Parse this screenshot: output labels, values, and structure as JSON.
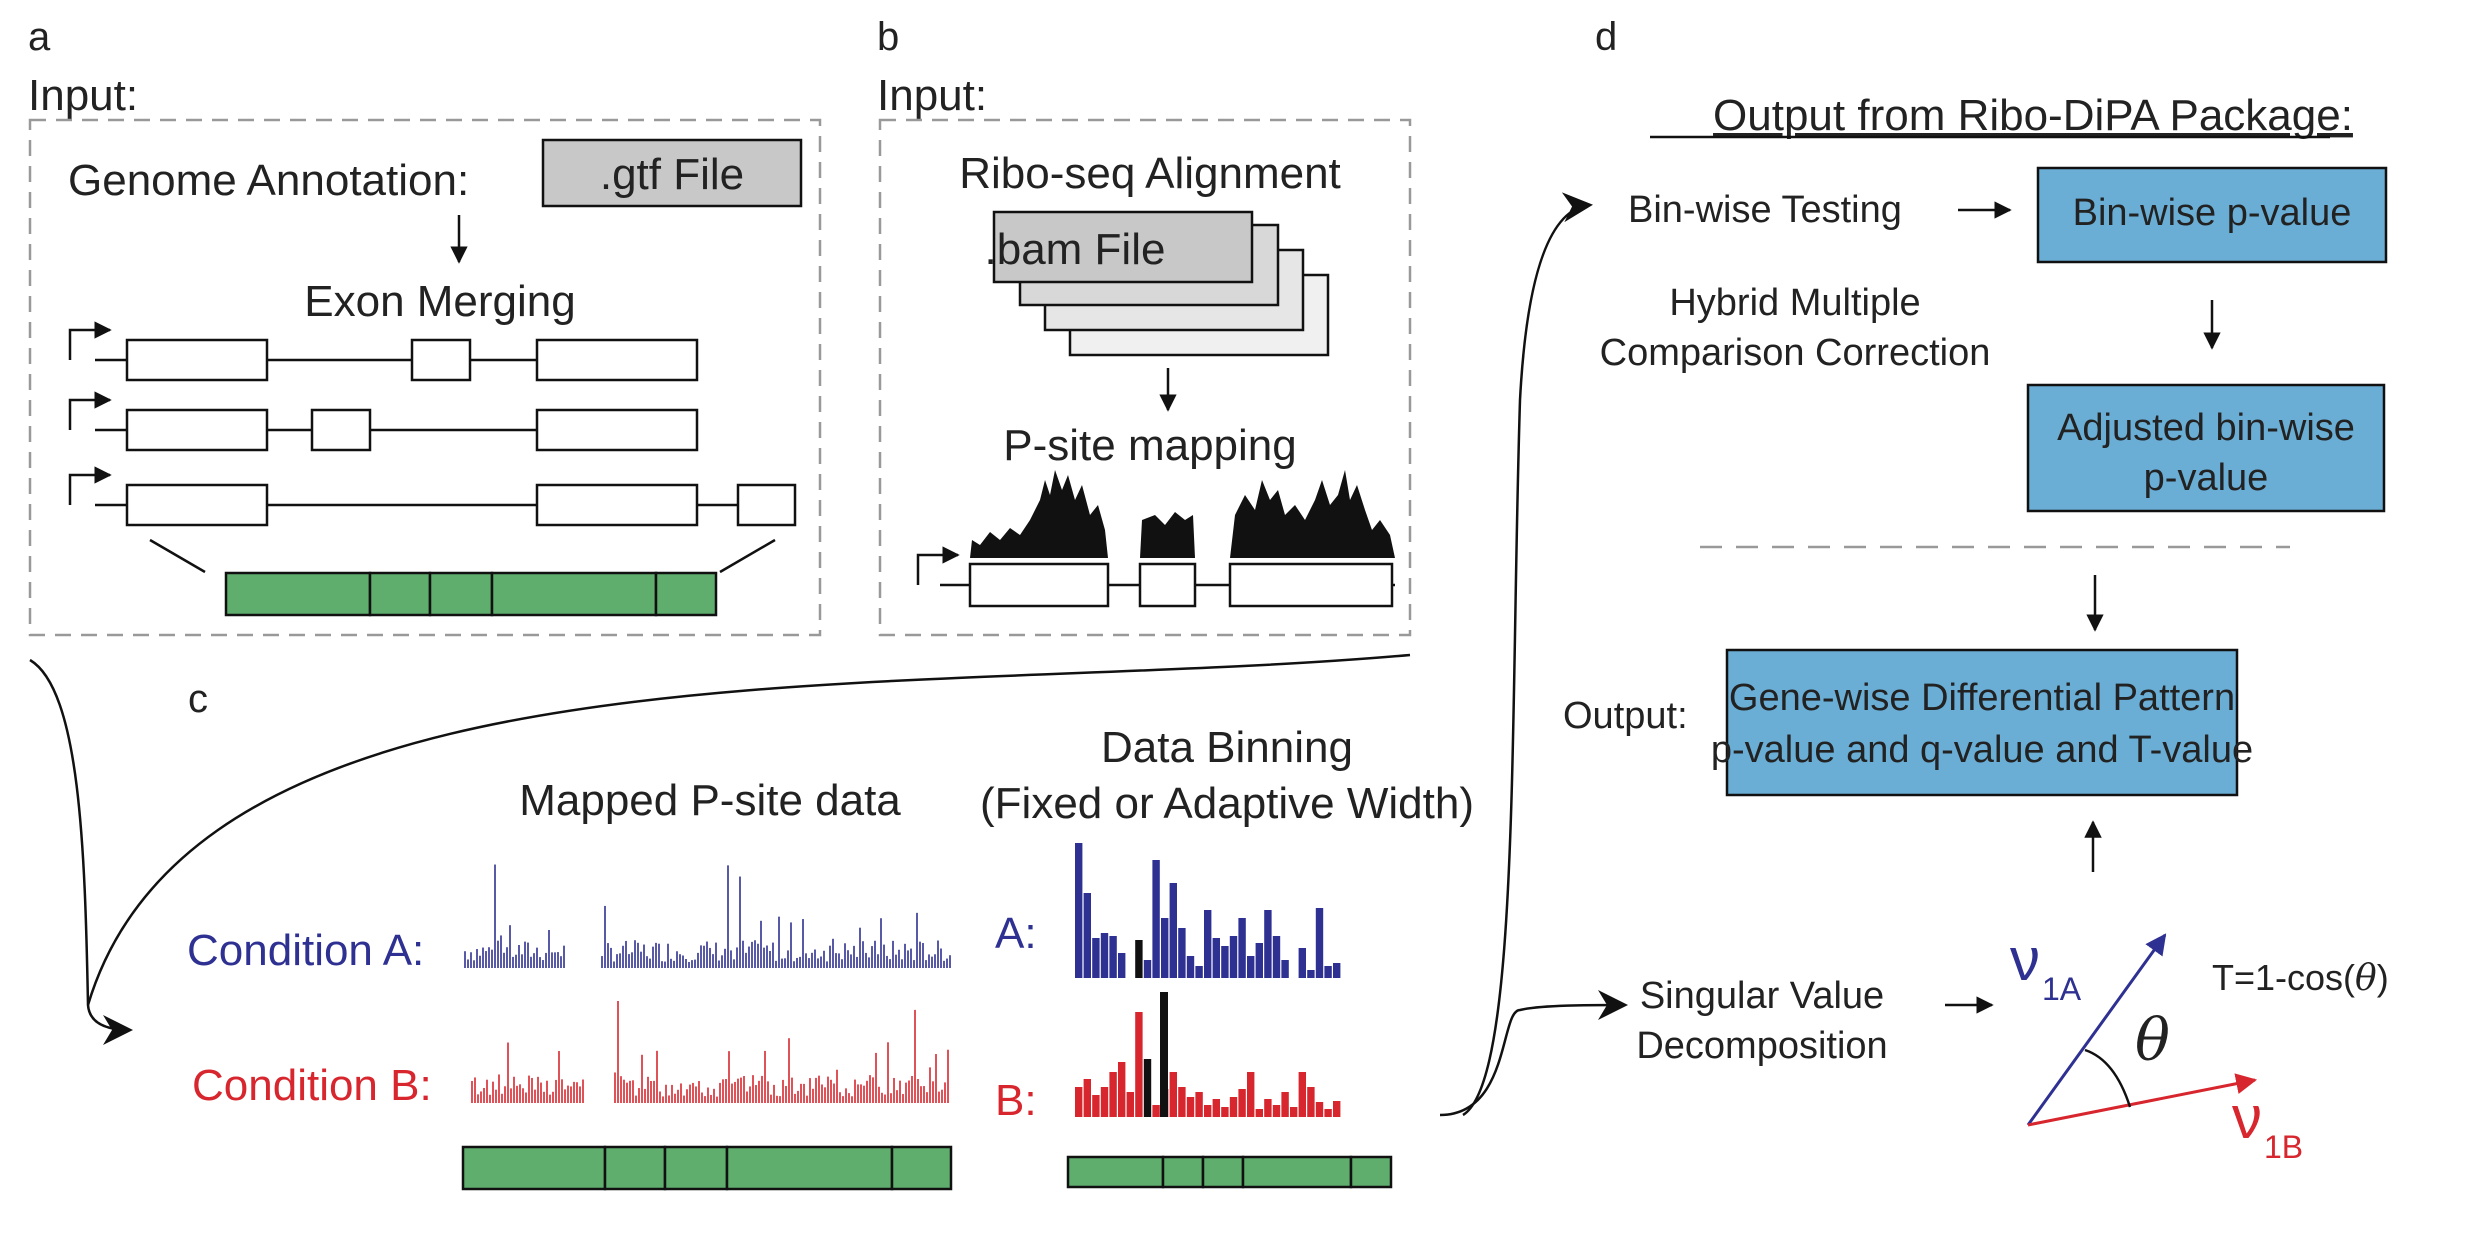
{
  "panels": {
    "a": {
      "letter": "a",
      "input_label": "Input:",
      "annotation_label": "Genome Annotation:",
      "file_label": ".gtf File",
      "step_label": "Exon Merging"
    },
    "b": {
      "letter": "b",
      "input_label": "Input:",
      "alignment_label": "Ribo-seq Alignment",
      "file_label": ".bam File",
      "step_label": "P-site mapping"
    },
    "c": {
      "letter": "c",
      "mapped_title": "Mapped P-site data",
      "binning_title_1": "Data Binning",
      "binning_title_2": "(Fixed or Adaptive Width)",
      "condition_a": "Condition A:",
      "condition_b": "Condition B:",
      "short_a": "A:",
      "short_b": "B:"
    },
    "d": {
      "letter": "d",
      "header": "Output from Ribo-DiPA Package:",
      "binwise_testing": "Bin-wise Testing",
      "binwise_pvalue": "Bin-wise p-value",
      "correction_line1": "Hybrid Multiple",
      "correction_line2": "Comparison Correction",
      "adjusted_line1": "Adjusted bin-wise",
      "adjusted_line2": "p-value",
      "output_label": "Output:",
      "output_line1": "Gene-wise Differential Pattern",
      "output_line2": "p-value and q-value and T-value",
      "svd_line1": "Singular Value",
      "svd_line2": "Decomposition",
      "vector_a": "ν",
      "vector_a_sub": "1A",
      "vector_b": "ν",
      "vector_b_sub": "1B",
      "theta": "θ",
      "t_formula_prefix": "T=1-cos(",
      "t_formula_theta": "θ",
      "t_formula_suffix": ")"
    }
  },
  "colors": {
    "blue": "#2e3192",
    "red": "#d7262d",
    "green": "#5fae6e",
    "box_blue": "#6aaed6",
    "box_grey": "#c8c8c8"
  }
}
